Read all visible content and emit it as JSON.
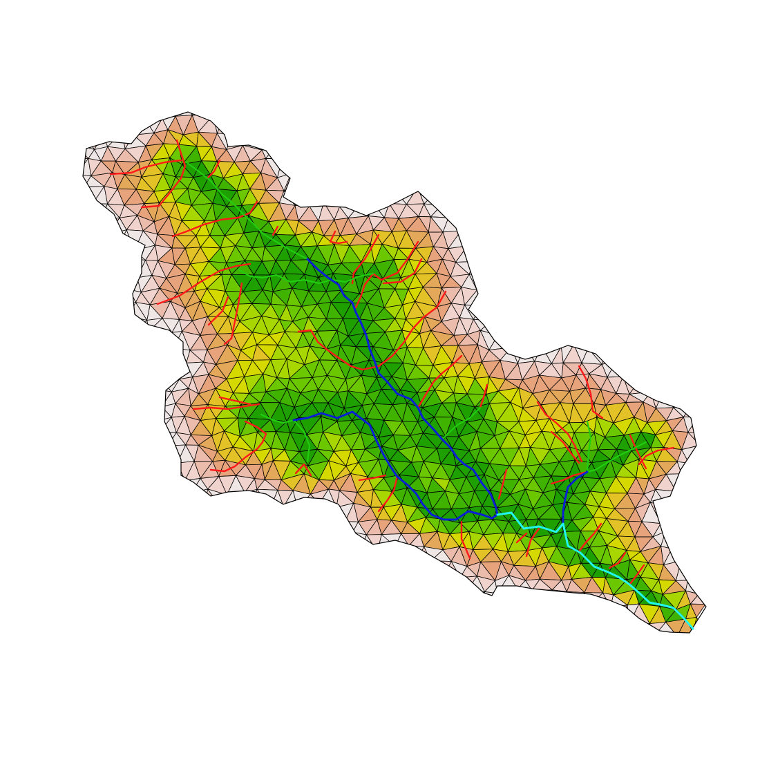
{
  "map": {
    "elevation_colors": [
      "#1ea000",
      "#3fb300",
      "#6bc800",
      "#a8d600",
      "#d6d900",
      "#e3c227",
      "#e4a85a",
      "#e6a37c",
      "#ebbcab",
      "#f0d3cc",
      "#efe7e5"
    ],
    "mesh_edge_color": "#000000",
    "stream_order_colors": {
      "order_1": "#ff1a1a",
      "order_2": "#22cc11",
      "order_3": "#0a1fd6",
      "order_4": "#22f5ef"
    },
    "terrain_model": "triangulated-irregular-network"
  }
}
